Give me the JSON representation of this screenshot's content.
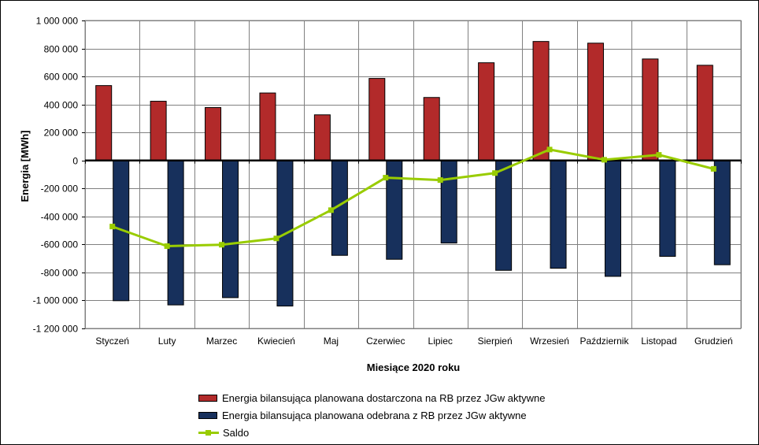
{
  "chart_data": {
    "type": "bar",
    "title": "",
    "xlabel": "Miesiące 2020  roku",
    "ylabel": "Energia [MWh]",
    "ylim": [
      -1200000,
      1000000
    ],
    "ytick_step": 200000,
    "ytick_labels": [
      "-1 200 000",
      "-1 000 000",
      "-800 000",
      "-600 000",
      "-400 000",
      "-200 000",
      "0",
      "200 000",
      "400 000",
      "600 000",
      "800 000",
      "1 000 000"
    ],
    "categories": [
      "Styczeń",
      "Luty",
      "Marzec",
      "Kwiecień",
      "Maj",
      "Czerwiec",
      "Lipiec",
      "Sierpień",
      "Wrzesień",
      "Październik",
      "Listopad",
      "Grudzień"
    ],
    "grid": true,
    "legend_position": "bottom",
    "series": [
      {
        "name": "Energia bilansująca planowana dostarczona na RB przez JGw aktywne",
        "type": "bar",
        "color": "#b22a2a",
        "values": [
          535000,
          423000,
          378000,
          482000,
          326000,
          586000,
          450000,
          698000,
          850000,
          838000,
          725000,
          680000
        ]
      },
      {
        "name": "Energia bilansująca planowana odebrana z RB przez JGw aktywne",
        "type": "bar",
        "color": "#17305c",
        "values": [
          -1002000,
          -1032000,
          -980000,
          -1040000,
          -678000,
          -706000,
          -590000,
          -785000,
          -770000,
          -828000,
          -685000,
          -745000
        ]
      },
      {
        "name": "Saldo",
        "type": "line",
        "color": "#99cc00",
        "values": [
          -472000,
          -612000,
          -602000,
          -557000,
          -355000,
          -123000,
          -140000,
          -90000,
          78000,
          5000,
          40000,
          -60000
        ]
      }
    ]
  }
}
